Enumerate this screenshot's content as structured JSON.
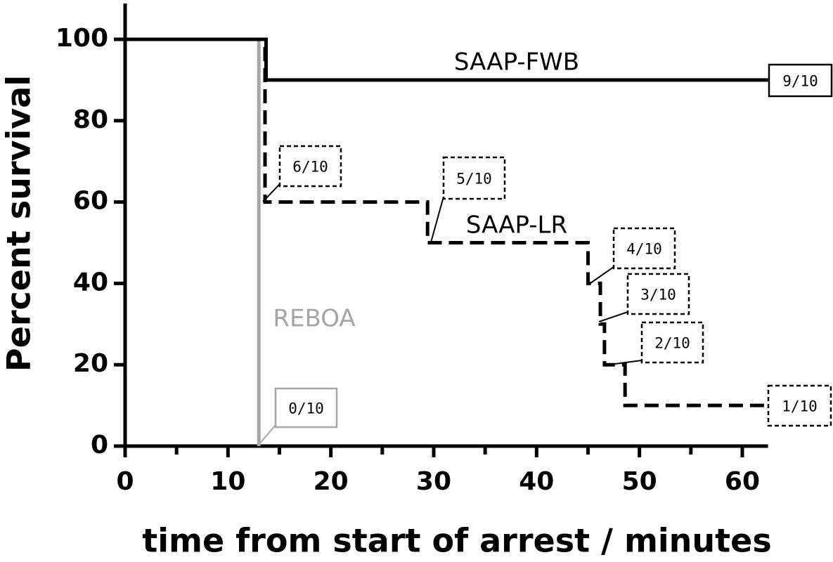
{
  "chart_data": {
    "type": "line",
    "step": true,
    "xlabel": "time from start of arrest / minutes",
    "ylabel": "Percent survival",
    "xlim": [
      0,
      62.5
    ],
    "xticks": [
      0,
      10,
      20,
      30,
      40,
      50,
      60
    ],
    "xminorticks": [
      5,
      15,
      25,
      35,
      45,
      55
    ],
    "ylim": [
      0,
      108.8
    ],
    "yticks": [
      0,
      20,
      40,
      60,
      80,
      100
    ],
    "series": [
      {
        "name": "SAAP-FWB",
        "color": "#000000",
        "line_style": "solid",
        "x": [
          0,
          13.7,
          13.7,
          62.5
        ],
        "values": [
          100,
          100,
          90,
          90
        ]
      },
      {
        "name": "SAAP-LR",
        "color": "#000000",
        "line_style": "dashed",
        "x": [
          0,
          13.6,
          13.6,
          29.4,
          29.4,
          45,
          45,
          46.2,
          46.2,
          46.6,
          46.6,
          48.6,
          48.6,
          62.5
        ],
        "values": [
          100,
          100,
          60,
          60,
          50,
          50,
          40,
          40,
          30,
          30,
          20,
          20,
          10,
          10
        ]
      },
      {
        "name": "REBOA",
        "color": "#a6a6a6",
        "line_style": "solid",
        "x": [
          0,
          13,
          13
        ],
        "values": [
          100,
          100,
          0
        ]
      }
    ],
    "annotations": [
      "9/10",
      "6/10",
      "5/10",
      "4/10",
      "3/10",
      "2/10",
      "1/10",
      "0/10"
    ]
  }
}
